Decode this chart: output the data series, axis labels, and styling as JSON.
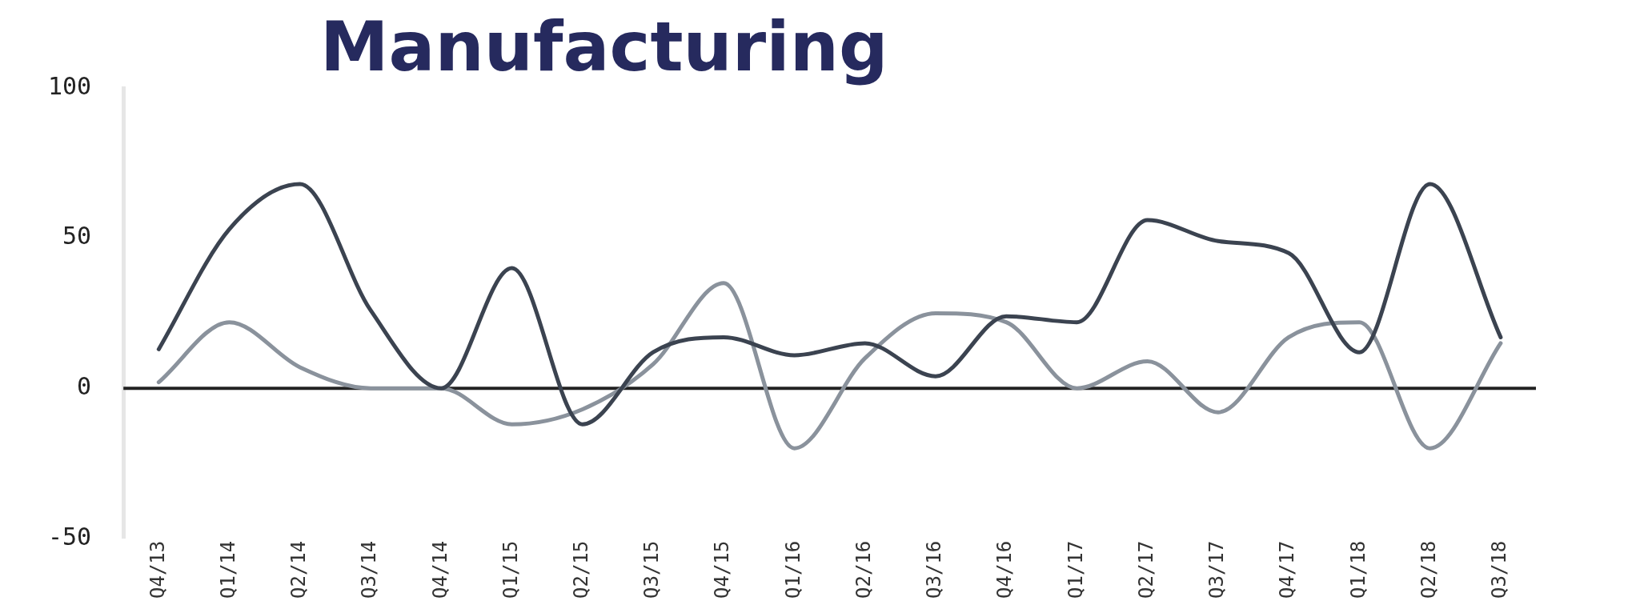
{
  "chart_data": {
    "type": "line",
    "title": "Manufacturing",
    "categories": [
      "Q4/13",
      "Q1/14",
      "Q2/14",
      "Q3/14",
      "Q4/14",
      "Q1/15",
      "Q2/15",
      "Q3/15",
      "Q4/15",
      "Q1/16",
      "Q2/16",
      "Q3/16",
      "Q4/16",
      "Q1/17",
      "Q2/17",
      "Q3/17",
      "Q4/17",
      "Q1/18",
      "Q2/18",
      "Q3/18"
    ],
    "series": [
      {
        "color": "#3b4350",
        "values": [
          13,
          53,
          68,
          26,
          0,
          40,
          -12,
          12,
          17,
          11,
          15,
          4,
          24,
          22,
          56,
          49,
          45,
          12,
          68,
          17
        ]
      },
      {
        "color": "#8a929c",
        "values": [
          2,
          22,
          7,
          0,
          0,
          -12,
          -7,
          8,
          35,
          -20,
          10,
          25,
          22,
          0,
          9,
          -8,
          17,
          22,
          -20,
          15
        ]
      }
    ],
    "ylim": [
      -50,
      100
    ],
    "yticks": [
      -50,
      0,
      50,
      100
    ],
    "grid": false,
    "legend": false,
    "marker": "none",
    "line_style": "solid",
    "ref_lines": [
      {
        "axis": "y",
        "value": 0,
        "color": "#222222"
      }
    ]
  }
}
